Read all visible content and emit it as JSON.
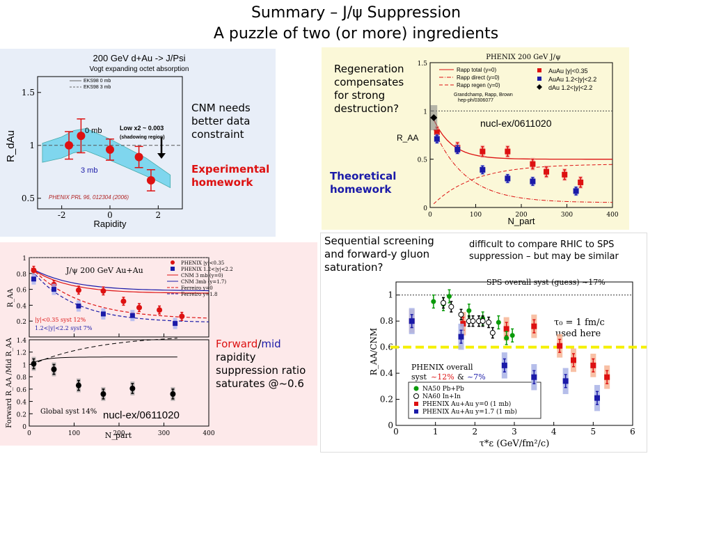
{
  "slide": {
    "title_line1": "Summary – J/ψ Suppression",
    "title_line2": "A puzzle of two (or more) ingredients"
  },
  "notes": {
    "cnm_needs": "CNM needs better data constraint",
    "experimental_homework": "Experimental homework",
    "regeneration": "Regeneration compensates for strong destruction?",
    "theoretical_homework": "Theoretical homework",
    "sequential": "Sequential screening and forward-y gluon saturation?",
    "difficult": "difficult to compare RHIC to SPS suppression – but may be similar",
    "forward_word": "Forward",
    "slash": "/",
    "mid_word": "mid",
    "forward_rest": "rapidity suppression ratio saturates @~0.6"
  },
  "colors": {
    "red": "#dd1111",
    "blue": "#1a1aa8",
    "panel_left_bg": "#e8eef8",
    "panel_yellow_bg": "#fbf8d8",
    "panel_pink_bg": "#fde9ea",
    "band": "#7fd6ee",
    "dashed_yellow": "#f5f000"
  },
  "chart_data": [
    {
      "type": "scatter",
      "title": "200 GeV d+Au -> J/Psi",
      "subtitle": "Vogt expanding octet absorption",
      "xlabel": "Rapidity",
      "ylabel": "R_dAu",
      "xlim": [
        -3,
        3
      ],
      "ylim": [
        0.4,
        1.65
      ],
      "xticks": [
        -2,
        0,
        2
      ],
      "yticks": [
        0.5,
        1,
        1.5
      ],
      "legend": [
        "EKS98 0 mb",
        "EKS98 3 mb"
      ],
      "annotations": [
        "0 mb",
        "3 mb",
        "Low x2 ~ 0.003",
        "(shadowing region)",
        "PHENIX PRL 96, 012304 (2006)"
      ],
      "series": [
        {
          "name": "PHENIX d+Au",
          "x": [
            -1.7,
            -1.2,
            0,
            1.2,
            1.7
          ],
          "y": [
            1.0,
            1.09,
            0.96,
            0.89,
            0.67
          ],
          "err": [
            0.13,
            0.16,
            0.1,
            0.1,
            0.1
          ]
        }
      ],
      "band_0mb": {
        "x": [
          -2.8,
          -2,
          -1.5,
          -1,
          0,
          1,
          1.5,
          2,
          2.5
        ],
        "y": [
          1.02,
          1.08,
          1.14,
          1.16,
          1.06,
          0.94,
          0.88,
          0.8,
          0.72
        ]
      },
      "band_3mb": {
        "x": [
          -2.8,
          -2,
          -1.5,
          -1,
          0,
          1,
          1.5,
          2,
          2.5
        ],
        "y": [
          0.84,
          0.88,
          0.93,
          0.95,
          0.86,
          0.76,
          0.71,
          0.66,
          0.6
        ]
      }
    },
    {
      "type": "scatter",
      "title": "PHENIX 200 GeV J/ψ",
      "xlabel": "N_part",
      "ylabel": "R_AA",
      "xlim": [
        0,
        400
      ],
      "ylim": [
        0,
        1.5
      ],
      "xticks": [
        0,
        100,
        200,
        300,
        400
      ],
      "yticks": [
        0.0,
        0.5,
        1.0,
        1.5
      ],
      "annotations": [
        "Grandchamp, Rapp, Brown",
        "hep-ph/0306077",
        "nucl-ex/0611020"
      ],
      "legend": [
        "Rapp total (y=0)",
        "Rapp direct (y=0)",
        "Rapp regen (y=0)",
        "AuAu |y|<0.35",
        "AuAu 1.2<|y|<2.2",
        "dAu 1.2<|y|<2.2"
      ],
      "series": [
        {
          "name": "AuAu |y|<0.35",
          "x": [
            15,
            60,
            115,
            170,
            225,
            255,
            295,
            330
          ],
          "y": [
            0.78,
            0.62,
            0.58,
            0.58,
            0.45,
            0.37,
            0.34,
            0.26
          ]
        },
        {
          "name": "AuAu 1.2<|y|<2.2",
          "x": [
            15,
            60,
            115,
            170,
            225,
            320
          ],
          "y": [
            0.71,
            0.6,
            0.39,
            0.3,
            0.27,
            0.17
          ]
        },
        {
          "name": "dAu 1.2<|y|<2.2",
          "x": [
            8
          ],
          "y": [
            0.93
          ]
        }
      ]
    },
    {
      "type": "scatter",
      "title": "J/ψ 200 GeV Au+Au",
      "xlabel": "N_part",
      "ylabel": "R_AA",
      "xlim": [
        0,
        400
      ],
      "ylim": [
        0,
        1
      ],
      "xticks": [
        0,
        100,
        200,
        300,
        400
      ],
      "yticks": [
        0.2,
        0.4,
        0.6,
        0.8,
        1
      ],
      "legend": [
        "PHENIX |y|<0.35",
        "PHENIX 1.2<|y|<2.2",
        "CNM 3 mb (y=0)",
        "CNM 3mb (y=1.7)",
        "Ferreiro y=0",
        "Ferreiro y=1.8"
      ],
      "annotations": [
        "|y|<0.35 syst 12%",
        "1.2<|y|<2.2 syst 7%"
      ],
      "series": [
        {
          "name": "PHENIX |y|<0.35",
          "x": [
            10,
            55,
            110,
            165,
            210,
            245,
            290,
            340
          ],
          "y": [
            0.84,
            0.66,
            0.59,
            0.58,
            0.45,
            0.37,
            0.34,
            0.26
          ]
        },
        {
          "name": "PHENIX 1.2<|y|<2.2",
          "x": [
            10,
            55,
            110,
            165,
            230,
            325
          ],
          "y": [
            0.73,
            0.6,
            0.39,
            0.29,
            0.27,
            0.17
          ]
        }
      ]
    },
    {
      "type": "scatter",
      "xlabel": "N_part",
      "ylabel": "Forward R_AA /Mid R_AA",
      "xlim": [
        0,
        400
      ],
      "ylim": [
        0,
        1.4
      ],
      "xticks": [
        0,
        100,
        200,
        300,
        400
      ],
      "yticks": [
        0,
        0.2,
        0.4,
        0.6,
        0.8,
        1,
        1.2,
        1.4
      ],
      "annotations": [
        "Global syst 14%",
        "nucl-ex/0611020"
      ],
      "series": [
        {
          "name": "ratio",
          "x": [
            10,
            55,
            110,
            165,
            230,
            320
          ],
          "y": [
            1.01,
            0.92,
            0.66,
            0.52,
            0.61,
            0.52
          ]
        }
      ]
    },
    {
      "type": "scatter",
      "xlabel": "τ*ε (GeV/fm²/c)",
      "ylabel": "R_AA/CNM",
      "xlim": [
        0,
        6
      ],
      "ylim": [
        0,
        1.1
      ],
      "xticks": [
        0,
        1,
        2,
        3,
        4,
        5,
        6
      ],
      "yticks": [
        0,
        0.2,
        0.4,
        0.6,
        0.8,
        1
      ],
      "annotations": [
        "SPS overall syst (guess) ~17%",
        "τ0 = 1 fm/c used here",
        "PHENIX overall",
        "syst",
        "~12%",
        "&",
        "~7%"
      ],
      "legend": [
        "NA50 Pb+Pb",
        "NA60 In+In",
        "PHENIX Au+Au y=0 (1 mb)",
        "PHENIX Au+Au y=1.7 (1 mb)"
      ],
      "series": [
        {
          "name": "NA50 Pb+Pb",
          "x": [
            0.95,
            1.2,
            1.35,
            1.85,
            2.2,
            2.6,
            2.8,
            2.95
          ],
          "y": [
            0.95,
            0.93,
            0.99,
            0.88,
            0.82,
            0.79,
            0.67,
            0.69
          ]
        },
        {
          "name": "NA60 In+In",
          "x": [
            1.2,
            1.4,
            1.65,
            1.85,
            1.95,
            2.1,
            2.2,
            2.35,
            2.45
          ],
          "y": [
            0.94,
            0.91,
            0.85,
            0.8,
            0.8,
            0.8,
            0.8,
            0.79,
            0.71
          ]
        },
        {
          "name": "PHENIX Au+Au y=0 (1 mb)",
          "x": [
            0.4,
            1.7,
            2.8,
            3.5,
            4.15,
            4.5,
            5.0,
            5.35
          ],
          "y": [
            0.8,
            0.78,
            0.74,
            0.76,
            0.61,
            0.5,
            0.46,
            0.37
          ]
        },
        {
          "name": "PHENIX Au+Au y=1.7 (1 mb)",
          "x": [
            0.4,
            1.65,
            2.75,
            3.5,
            4.3,
            5.1
          ],
          "y": [
            0.8,
            0.68,
            0.46,
            0.37,
            0.34,
            0.21
          ]
        }
      ]
    }
  ]
}
